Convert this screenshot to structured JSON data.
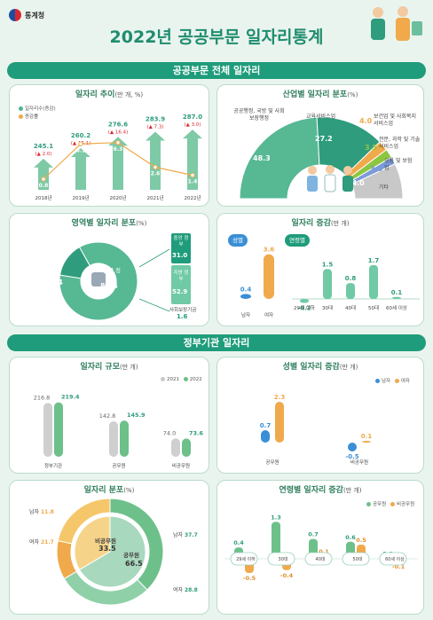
{
  "header": {
    "logo_text": "통계청",
    "title": "2022년 공공부문 일자리통계",
    "accent": "#1f9c7b"
  },
  "section1": {
    "title": "공공부문 전체 일자리"
  },
  "trend": {
    "title": "일자리 추이",
    "unit": "(만 개, %)",
    "legend_jobs": "일자리수(증감)",
    "legend_rate": "증감률",
    "years": [
      "2018년",
      "2019년",
      "2020년",
      "2021년",
      "2022년"
    ],
    "jobs": [
      "245.1",
      "260.2",
      "276.6",
      "283.9",
      "287.0"
    ],
    "change": [
      "2.0",
      "15.1",
      "16.4",
      "7.3",
      "3.0"
    ],
    "rates": [
      "0.8",
      "6.1",
      "6.3",
      "2.6",
      "1.4"
    ]
  },
  "industry": {
    "title": "산업별 일자리 분포",
    "unit": "(%)",
    "items": [
      {
        "label": "공공행정, 국방 및 사회보장행정",
        "value": "48.3"
      },
      {
        "label": "교육서비스업",
        "value": "27.2"
      },
      {
        "label": "보건업 및 사회복지서비스업",
        "value": "4.0"
      },
      {
        "label": "전문, 과학 및 기술서비스업",
        "value": "3.5"
      },
      {
        "label": "금융 및 보험업",
        "value": "3.0"
      },
      {
        "label": "기타",
        "value": "14.0"
      }
    ]
  },
  "sector": {
    "title": "영역별 일자리 분포",
    "unit": "(%)",
    "public_corp_label": "공기업",
    "public_corp_value": "14.4",
    "general_gov_label": "일반 정부",
    "general_gov_value": "85.6",
    "central_label": "중앙 정부",
    "central_value": "31.0",
    "local_label": "지방 정부",
    "local_value": "52.9",
    "social_label": "사회보장기금",
    "social_value": "1.6"
  },
  "increase": {
    "title": "일자리 증감",
    "unit": "(만 개)",
    "gender_tag": "성별",
    "age_tag": "연령별",
    "gender": [
      {
        "label": "남자",
        "value": "0.4"
      },
      {
        "label": "여자",
        "value": "3.6"
      }
    ],
    "age": [
      {
        "label": "29세 이하",
        "value": "-0.2"
      },
      {
        "label": "30대",
        "value": "1.5"
      },
      {
        "label": "40대",
        "value": "0.8"
      },
      {
        "label": "50대",
        "value": "1.7"
      },
      {
        "label": "60세 이상",
        "value": "0.1"
      }
    ]
  },
  "section2": {
    "title": "정부기관 일자리"
  },
  "scale": {
    "title": "일자리 규모",
    "unit": "(만 개)",
    "legend": [
      "2021",
      "2022"
    ],
    "groups": [
      {
        "label": "정부기관",
        "v2021": "216.8",
        "v2022": "219.4"
      },
      {
        "label": "공무원",
        "v2021": "142.8",
        "v2022": "145.9"
      },
      {
        "label": "비공무원",
        "v2021": "74.0",
        "v2022": "73.6"
      }
    ]
  },
  "gender_inc": {
    "title": "성별 일자리 증감",
    "unit": "(만 개)",
    "legend": [
      "남자",
      "여자"
    ],
    "groups": [
      {
        "label": "공무원",
        "male": "0.7",
        "female": "2.3"
      },
      {
        "label": "비공무원",
        "male": "-0.5",
        "female": "0.1"
      }
    ]
  },
  "dist": {
    "title": "일자리 분포",
    "unit": "(%)",
    "nonpublic_label": "비공무원",
    "nonpublic_value": "33.5",
    "public_label": "공무원",
    "public_value": "66.5",
    "outer": [
      {
        "label": "남자",
        "value": "11.8"
      },
      {
        "label": "여자",
        "value": "21.7"
      },
      {
        "label": "남자",
        "value": "37.7"
      },
      {
        "label": "여자",
        "value": "28.8"
      }
    ]
  },
  "age_inc": {
    "title": "연령별 일자리 증감",
    "unit": "(만 개)",
    "legend": [
      "공무원",
      "비공무원"
    ],
    "groups": [
      {
        "label": "29세 이하",
        "pub": "0.4",
        "non": "-0.5"
      },
      {
        "label": "30대",
        "pub": "1.3",
        "non": "-0.4"
      },
      {
        "label": "40대",
        "pub": "0.7",
        "non": "0.1"
      },
      {
        "label": "50대",
        "pub": "0.6",
        "non": "0.5"
      },
      {
        "label": "60세 이상",
        "pub": "0.0",
        "non": "-0.1"
      }
    ]
  },
  "chart_data": [
    {
      "type": "bar",
      "title": "일자리 추이",
      "categories": [
        "2018년",
        "2019년",
        "2020년",
        "2021년",
        "2022년"
      ],
      "series": [
        {
          "name": "일자리수(증감)",
          "values": [
            245.1,
            260.2,
            276.6,
            283.9,
            287.0
          ]
        },
        {
          "name": "증감률",
          "values": [
            0.8,
            6.1,
            6.3,
            2.6,
            1.4
          ]
        }
      ]
    },
    {
      "type": "pie",
      "title": "산업별 일자리 분포",
      "categories": [
        "공공행정, 국방 및 사회보장행정",
        "교육서비스업",
        "보건업 및 사회복지서비스업",
        "전문, 과학 및 기술서비스업",
        "금융 및 보험업",
        "기타"
      ],
      "values": [
        48.3,
        27.2,
        4.0,
        3.5,
        3.0,
        14.0
      ]
    },
    {
      "type": "pie",
      "title": "영역별 일자리 분포",
      "categories": [
        "일반 정부",
        "공기업"
      ],
      "values": [
        85.6,
        14.4
      ]
    },
    {
      "type": "bar",
      "title": "일자리 증감",
      "categories": [
        "남자",
        "여자",
        "29세 이하",
        "30대",
        "40대",
        "50대",
        "60세 이상"
      ],
      "values": [
        0.4,
        3.6,
        -0.2,
        1.5,
        0.8,
        1.7,
        0.1
      ]
    },
    {
      "type": "bar",
      "title": "일자리 규모",
      "categories": [
        "정부기관",
        "공무원",
        "비공무원"
      ],
      "series": [
        {
          "name": "2021",
          "values": [
            216.8,
            142.8,
            74.0
          ]
        },
        {
          "name": "2022",
          "values": [
            219.4,
            145.9,
            73.6
          ]
        }
      ]
    },
    {
      "type": "bar",
      "title": "성별 일자리 증감",
      "categories": [
        "공무원",
        "비공무원"
      ],
      "series": [
        {
          "name": "남자",
          "values": [
            0.7,
            -0.5
          ]
        },
        {
          "name": "여자",
          "values": [
            2.3,
            0.1
          ]
        }
      ]
    },
    {
      "type": "pie",
      "title": "일자리 분포",
      "categories": [
        "비공무원",
        "공무원"
      ],
      "values": [
        33.5,
        66.5
      ]
    },
    {
      "type": "bar",
      "title": "연령별 일자리 증감",
      "categories": [
        "29세 이하",
        "30대",
        "40대",
        "50대",
        "60세 이상"
      ],
      "series": [
        {
          "name": "공무원",
          "values": [
            0.4,
            1.3,
            0.7,
            0.6,
            0.0
          ]
        },
        {
          "name": "비공무원",
          "values": [
            -0.5,
            -0.4,
            0.1,
            0.5,
            -0.1
          ]
        }
      ]
    }
  ]
}
